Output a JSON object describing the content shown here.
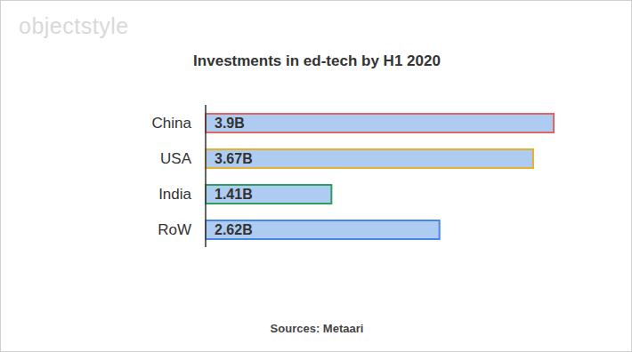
{
  "chart_data": {
    "type": "bar",
    "title": "Investments in ed-tech by H1 2020",
    "logo": "objectstyle",
    "source": "Sources: Metaari",
    "categories": [
      "China",
      "USA",
      "India",
      "RoW"
    ],
    "values": [
      3.9,
      3.67,
      1.41,
      2.62
    ],
    "value_labels": [
      "3.9B",
      "3.67B",
      "1.41B",
      "2.62B"
    ],
    "color": "#aecbf2",
    "colors": [
      "#e06666",
      "#e6b030",
      "#2e9e5b",
      "#4a86e8"
    ],
    "orientation": "horizontal",
    "data_labels": true,
    "tick_labels": "y"
  }
}
